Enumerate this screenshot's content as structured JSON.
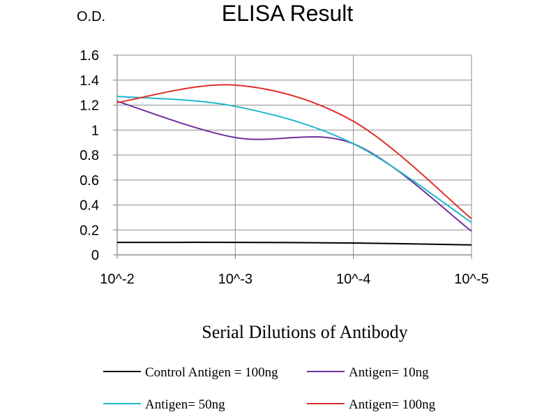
{
  "chart_data": {
    "type": "line",
    "title": "ELISA Result",
    "ylabel": "O.D.",
    "xlabel": "Serial Dilutions of Antibody",
    "x": [
      "10^-2",
      "10^-3",
      "10^-4",
      "10^-5"
    ],
    "ylim": [
      0,
      1.6
    ],
    "yticks": [
      "0",
      "0.2",
      "0.4",
      "0.6",
      "0.8",
      "1",
      "1.2",
      "1.4",
      "1.6"
    ],
    "grid": true,
    "legend_position": "bottom",
    "series": [
      {
        "name": "Control Antigen = 100ng",
        "color": "#000000",
        "values": [
          0.1,
          0.1,
          0.095,
          0.08
        ]
      },
      {
        "name": "Antigen= 10ng",
        "color": "#7030a0",
        "values": [
          1.23,
          0.94,
          0.89,
          0.19
        ]
      },
      {
        "name": "Antigen= 50ng",
        "color": "#1fb7c9",
        "values": [
          1.27,
          1.19,
          0.89,
          0.26
        ]
      },
      {
        "name": "Antigen= 100ng",
        "color": "#e0302a",
        "values": [
          1.22,
          1.36,
          1.07,
          0.29
        ]
      }
    ]
  }
}
